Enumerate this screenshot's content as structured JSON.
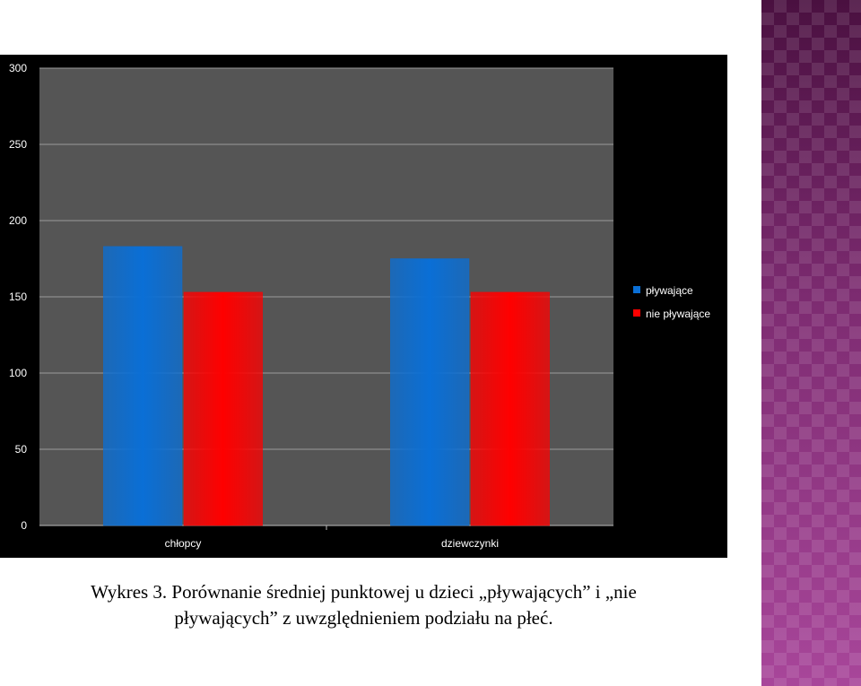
{
  "chart_data": {
    "type": "bar",
    "categories": [
      "chłopcy",
      "dziewczynki"
    ],
    "series": [
      {
        "name": "pływające",
        "values": [
          183,
          175
        ],
        "color": "#0a6fd6"
      },
      {
        "name": "nie pływające",
        "values": [
          153,
          153
        ],
        "color": "#ff0000"
      }
    ],
    "ylim": [
      0,
      300
    ],
    "yticks": [
      0,
      50,
      100,
      150,
      200,
      250,
      300
    ],
    "grid": true,
    "legend": "right",
    "plot_background": "#555555"
  },
  "caption": {
    "line1": "Wykres 3. Porównanie średniej punktowej u dzieci „pływających” i „nie",
    "line2": "pływających” z uwzględnieniem podziału na płeć."
  }
}
